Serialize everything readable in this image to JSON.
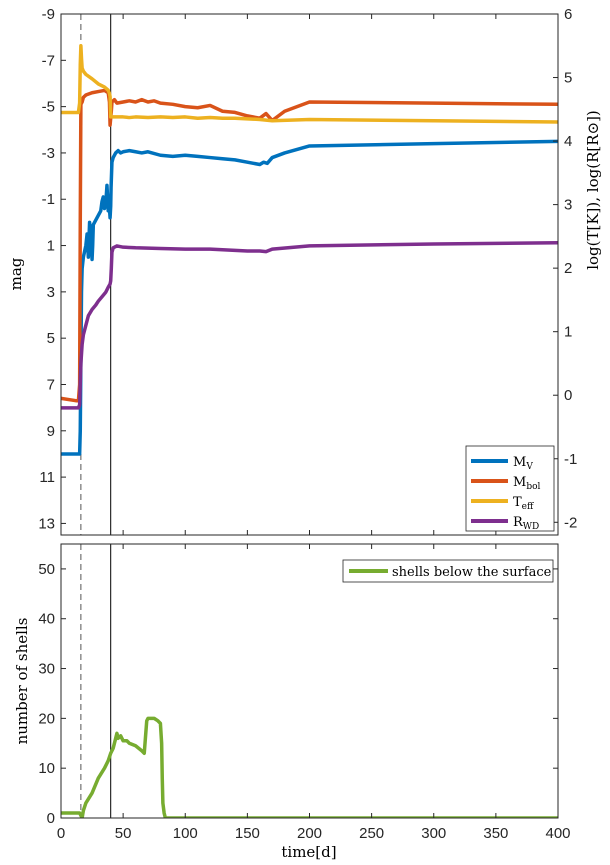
{
  "chart_data": [
    {
      "type": "line",
      "panel": "top",
      "xlim": [
        0,
        400
      ],
      "ylabel": "mag",
      "ylim_left": [
        -9,
        13.5
      ],
      "y_left_reversed": true,
      "y_left_ticks": [
        "-9",
        "-7",
        "-5",
        "-3",
        "-1",
        "1",
        "3",
        "5",
        "7",
        "9",
        "11",
        "13"
      ],
      "y_left_tick_values": [
        -9,
        -7,
        -5,
        -3,
        -1,
        1,
        3,
        5,
        7,
        9,
        11,
        13
      ],
      "ylabel_right": "log(T[K]), log(R[R⊙])",
      "ylim_right": [
        -2.2,
        6
      ],
      "y_right_ticks": [
        "-2",
        "-1",
        "0",
        "1",
        "2",
        "3",
        "4",
        "5",
        "6"
      ],
      "y_right_tick_values": [
        -2,
        -1,
        0,
        1,
        2,
        3,
        4,
        5,
        6
      ],
      "vlines": [
        {
          "x": 16,
          "style": "dashed"
        },
        {
          "x": 40,
          "style": "solid"
        }
      ],
      "legend": {
        "placement": "bottom-right"
      },
      "series": [
        {
          "name": "M",
          "sub": "V",
          "color": "#0072BD",
          "axis": "left",
          "x": [
            0,
            15,
            15.5,
            16,
            16.5,
            17,
            18,
            20,
            21,
            22,
            23,
            24,
            25,
            25.5,
            26,
            28,
            30,
            32,
            33,
            34,
            35,
            36,
            37,
            38,
            39,
            39.5,
            40,
            40.3,
            41,
            42,
            44,
            46,
            48,
            50,
            55,
            60,
            65,
            70,
            80,
            90,
            100,
            110,
            120,
            130,
            140,
            150,
            160,
            163,
            166,
            170,
            180,
            200,
            300,
            400
          ],
          "y": [
            10,
            10,
            9,
            6,
            3,
            2,
            1.5,
            1,
            0.5,
            1.5,
            0,
            0.5,
            1.6,
            1,
            0.1,
            -0.1,
            -0.3,
            -0.5,
            -0.9,
            -1.1,
            -0.6,
            -0.8,
            -1.6,
            -0.5,
            -0.6,
            -0.2,
            -0.7,
            -1.5,
            -2.6,
            -2.8,
            -3.0,
            -3.1,
            -3.0,
            -3.05,
            -3.1,
            -3.05,
            -3.0,
            -3.05,
            -2.9,
            -2.85,
            -2.9,
            -2.85,
            -2.8,
            -2.75,
            -2.7,
            -2.6,
            -2.5,
            -2.6,
            -2.55,
            -2.8,
            -3.0,
            -3.3,
            -3.4,
            -3.5
          ]
        },
        {
          "name": "M",
          "sub": "bol",
          "color": "#D95319",
          "axis": "left",
          "x": [
            0,
            12,
            14,
            15,
            15.5,
            16,
            17,
            18,
            20,
            25,
            30,
            35,
            38,
            39,
            39.5,
            40,
            40.5,
            41,
            43,
            45,
            50,
            55,
            60,
            65,
            70,
            75,
            80,
            90,
            100,
            110,
            120,
            130,
            140,
            150,
            160,
            165,
            170,
            180,
            200,
            300,
            400
          ],
          "y": [
            7.6,
            7.7,
            7.7,
            7.0,
            0,
            -5.1,
            -5.2,
            -5.4,
            -5.5,
            -5.6,
            -5.65,
            -5.7,
            -5.6,
            -5.2,
            -4.2,
            -4.5,
            -4.8,
            -5.2,
            -5.3,
            -5.15,
            -5.2,
            -5.25,
            -5.2,
            -5.3,
            -5.2,
            -5.25,
            -5.15,
            -5.1,
            -5.0,
            -4.95,
            -5.05,
            -4.8,
            -4.75,
            -4.6,
            -4.5,
            -4.7,
            -4.4,
            -4.8,
            -5.2,
            -5.15,
            -5.1
          ]
        },
        {
          "name": "T",
          "sub": "eff",
          "color": "#EDB120",
          "axis": "right",
          "x": [
            0,
            10,
            14,
            15,
            15.5,
            16,
            16.5,
            17,
            18,
            20,
            25,
            30,
            35,
            38,
            39,
            39.5,
            40,
            41,
            45,
            50,
            55,
            60,
            70,
            80,
            90,
            100,
            110,
            120,
            130,
            140,
            150,
            160,
            170,
            200,
            300,
            400
          ],
          "y": [
            4.45,
            4.45,
            4.45,
            4.6,
            5.2,
            5.5,
            5.3,
            5.15,
            5.1,
            5.05,
            4.98,
            4.9,
            4.85,
            4.8,
            4.75,
            4.7,
            4.38,
            4.38,
            4.38,
            4.38,
            4.37,
            4.38,
            4.37,
            4.38,
            4.37,
            4.38,
            4.36,
            4.37,
            4.36,
            4.36,
            4.35,
            4.34,
            4.32,
            4.34,
            4.32,
            4.3
          ]
        },
        {
          "name": "R",
          "sub": "WD",
          "color": "#7E2F8E",
          "axis": "right",
          "x": [
            0,
            14,
            15,
            15.5,
            16,
            17,
            18,
            20,
            22,
            25,
            28,
            30,
            33,
            36,
            38,
            39.5,
            40,
            40.5,
            41,
            42,
            45,
            50,
            60,
            80,
            100,
            120,
            140,
            150,
            160,
            165,
            170,
            200,
            300,
            400
          ],
          "y": [
            -0.2,
            -0.2,
            -0.15,
            0.2,
            0.5,
            0.8,
            0.95,
            1.1,
            1.25,
            1.35,
            1.42,
            1.48,
            1.55,
            1.62,
            1.7,
            1.75,
            1.8,
            2.0,
            2.25,
            2.32,
            2.35,
            2.33,
            2.32,
            2.31,
            2.3,
            2.3,
            2.28,
            2.27,
            2.27,
            2.26,
            2.3,
            2.35,
            2.38,
            2.4
          ]
        }
      ]
    },
    {
      "type": "line",
      "panel": "bottom",
      "xlabel": "time[d]",
      "xlim": [
        0,
        400
      ],
      "x_ticks": [
        "0",
        "50",
        "100",
        "150",
        "200",
        "250",
        "300",
        "350",
        "400"
      ],
      "x_tick_values": [
        0,
        50,
        100,
        150,
        200,
        250,
        300,
        350,
        400
      ],
      "ylabel": "number of shells",
      "ylim": [
        0,
        55
      ],
      "y_ticks": [
        "0",
        "10",
        "20",
        "30",
        "40",
        "50"
      ],
      "y_tick_values": [
        0,
        10,
        20,
        30,
        40,
        50
      ],
      "vlines": [
        {
          "x": 16,
          "style": "dashed"
        },
        {
          "x": 40,
          "style": "solid"
        }
      ],
      "legend": {
        "placement": "top-right"
      },
      "series": [
        {
          "name": "shells below the surface",
          "color": "#77AC30",
          "x": [
            0,
            13,
            14,
            15,
            16,
            17,
            18,
            20,
            25,
            30,
            35,
            38,
            40,
            42,
            44,
            45,
            46,
            48,
            50,
            53,
            55,
            60,
            65,
            67,
            69,
            70,
            72,
            75,
            78,
            80,
            81,
            81.5,
            82,
            83,
            84,
            85,
            90,
            100,
            200,
            300,
            400
          ],
          "y": [
            1,
            1,
            1,
            1,
            0.5,
            0,
            1.5,
            3,
            5,
            8,
            10,
            11.5,
            13,
            14,
            16,
            17,
            16,
            16.5,
            15.5,
            15.5,
            15,
            14.5,
            13.5,
            13,
            19.5,
            20,
            20,
            20,
            19.5,
            19,
            15,
            8,
            3,
            1,
            0,
            0,
            0,
            0,
            0,
            0,
            0
          ]
        }
      ]
    }
  ]
}
